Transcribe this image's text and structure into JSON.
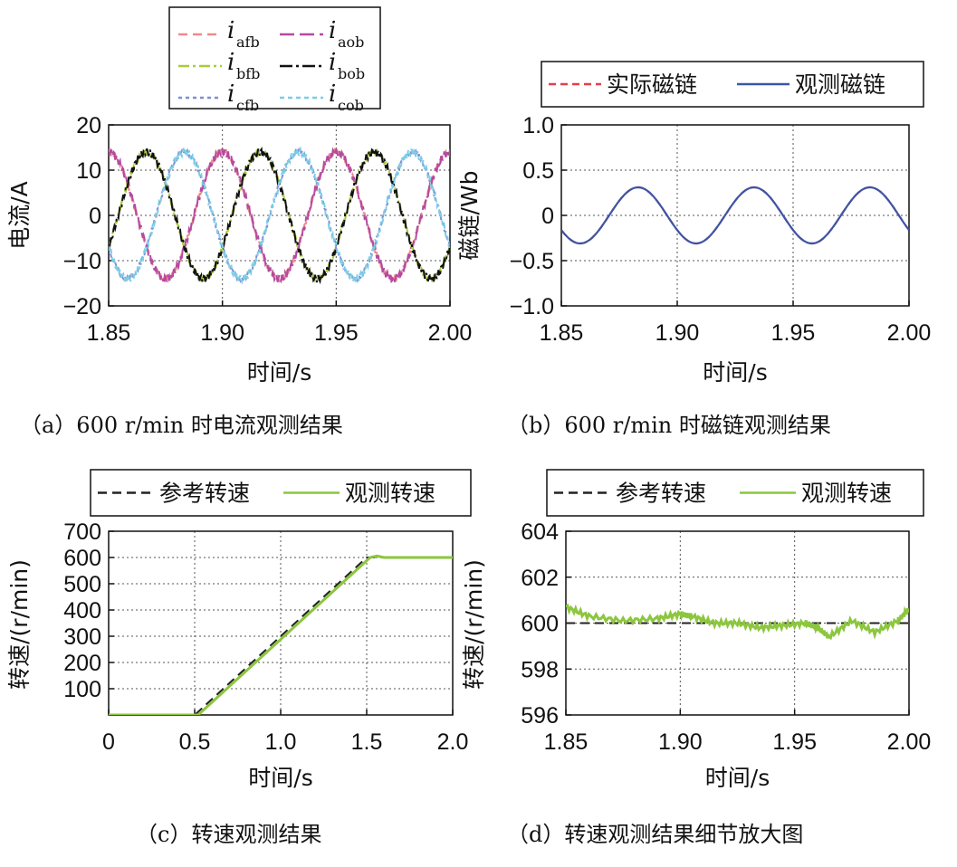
{
  "chart_data": [
    {
      "panel": "a",
      "type": "line",
      "caption": "（a）600 r/min 时电流观测结果",
      "xlabel": "时间/s",
      "ylabel": "电流/A",
      "xlim": [
        1.85,
        2.0
      ],
      "ylim": [
        -20,
        20
      ],
      "xticks": [
        "1.85",
        "1.90",
        "1.95",
        "2.00"
      ],
      "yticks": [
        "20",
        "10",
        "0",
        "−10",
        "−20"
      ],
      "grid": true,
      "legend_position": "top (outside)",
      "amplitude": 14,
      "frequency_hz": 20,
      "series": [
        {
          "name": "i",
          "sub": "afb",
          "color": "#f08a8a",
          "dash": "10,6",
          "phase_deg": -90
        },
        {
          "name": "i",
          "sub": "aob",
          "color": "#b44aa0",
          "dash": "16,6",
          "phase_deg": -90
        },
        {
          "name": "i",
          "sub": "bfb",
          "color": "#a8cc3a",
          "dash": "12,4,3,4",
          "phase_deg": 150
        },
        {
          "name": "i",
          "sub": "bob",
          "color": "#111111",
          "dash": "14,4,3,4",
          "phase_deg": 150
        },
        {
          "name": "i",
          "sub": "cfb",
          "color": "#7f8fd4",
          "dash": "4,4",
          "phase_deg": 30
        },
        {
          "name": "i",
          "sub": "cob",
          "color": "#7ccde6",
          "dash": "5,4",
          "phase_deg": 30
        }
      ]
    },
    {
      "panel": "b",
      "type": "line",
      "caption": "（b）600 r/min 时磁链观测结果",
      "xlabel": "时间/s",
      "ylabel": "磁链/Wb",
      "xlim": [
        1.85,
        2.0
      ],
      "ylim": [
        -1.0,
        1.0
      ],
      "xticks": [
        "1.85",
        "1.90",
        "1.95",
        "2.00"
      ],
      "yticks": [
        "1.0",
        "0.5",
        "0",
        "−0.5",
        "−1.0"
      ],
      "grid": true,
      "legend_position": "top (outside)",
      "amplitude": 0.31,
      "frequency_hz": 20,
      "series": [
        {
          "name": "实际磁链",
          "color": "#e0404a",
          "dash": "8,5"
        },
        {
          "name": "观测磁链",
          "color": "#3d55a5",
          "dash": ""
        }
      ]
    },
    {
      "panel": "c",
      "type": "line",
      "caption": "（c）转速观测结果",
      "xlabel": "时间/s",
      "ylabel": "转速/(r/min)",
      "xlim": [
        0,
        2.0
      ],
      "ylim": [
        0,
        700
      ],
      "xticks": [
        "0",
        "0.5",
        "1.0",
        "1.5",
        "2.0"
      ],
      "yticks": [
        "700",
        "600",
        "500",
        "400",
        "300",
        "200",
        "100"
      ],
      "grid": true,
      "legend_position": "top (outside)",
      "series": [
        {
          "name": "参考转速",
          "color": "#222222",
          "dash": "10,6",
          "x": [
            0,
            0.5,
            1.5,
            2.0
          ],
          "y": [
            0,
            0,
            600,
            600
          ]
        },
        {
          "name": "观测转速",
          "color": "#8cc63f",
          "dash": "",
          "x": [
            0,
            0.52,
            1.52,
            1.56,
            1.6,
            2.0
          ],
          "y": [
            0,
            0,
            600,
            606,
            600,
            600
          ]
        }
      ]
    },
    {
      "panel": "d",
      "type": "line",
      "caption": "（d）转速观测结果细节放大图",
      "xlabel": "时间/s",
      "ylabel": "转速/(r/min)",
      "xlim": [
        1.85,
        2.0
      ],
      "ylim": [
        596,
        604
      ],
      "xticks": [
        "1.85",
        "1.90",
        "1.95",
        "2.00"
      ],
      "yticks": [
        "604",
        "602",
        "600",
        "598",
        "596"
      ],
      "grid": true,
      "legend_position": "top (outside)",
      "series": [
        {
          "name": "参考转速",
          "color": "#222222",
          "dash": "10,6",
          "x": [
            1.85,
            2.0
          ],
          "y": [
            600,
            600
          ]
        },
        {
          "name": "观测转速",
          "color": "#8cc63f",
          "dash": "",
          "x": [
            1.85,
            1.86,
            1.875,
            1.89,
            1.9,
            1.905,
            1.915,
            1.925,
            1.935,
            1.945,
            1.955,
            1.96,
            1.965,
            1.975,
            1.985,
            1.995,
            2.0
          ],
          "y": [
            600.7,
            600.3,
            600.1,
            600.2,
            600.4,
            600.3,
            600.0,
            600.0,
            599.8,
            599.9,
            600.0,
            599.8,
            599.4,
            600.1,
            599.6,
            600.1,
            600.6
          ]
        }
      ]
    }
  ]
}
